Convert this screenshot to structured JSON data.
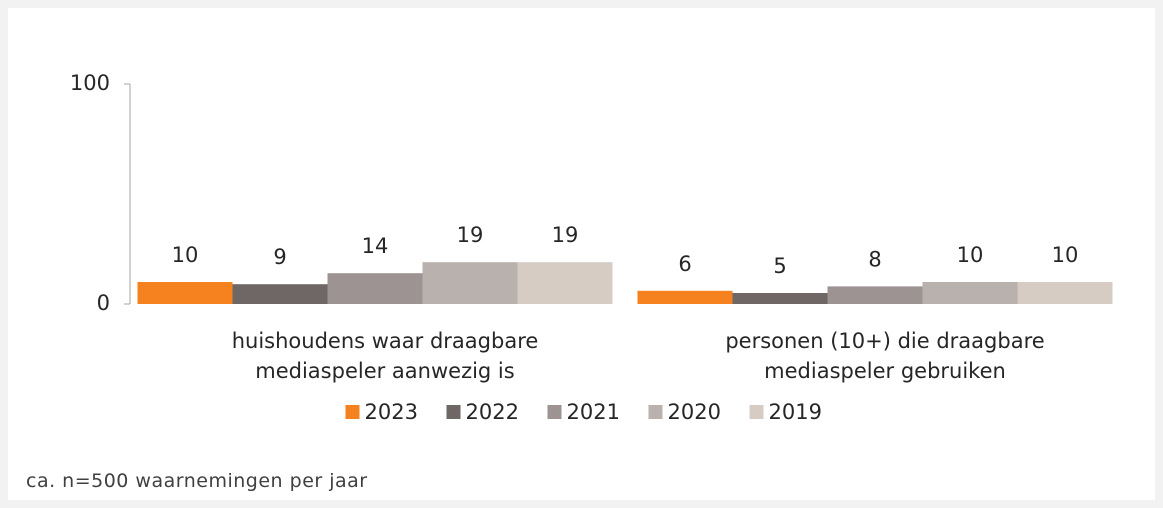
{
  "chart_data": {
    "type": "bar",
    "categories": [
      "huishoudens waar draagbare mediaspeler aanwezig is",
      "personen (10+) die draagbare mediaspeler gebruiken"
    ],
    "series": [
      {
        "name": "2023",
        "color": "#f5821f",
        "values": [
          10,
          6
        ]
      },
      {
        "name": "2022",
        "color": "#6f6666",
        "values": [
          9,
          5
        ]
      },
      {
        "name": "2021",
        "color": "#9d9393",
        "values": [
          14,
          8
        ]
      },
      {
        "name": "2020",
        "color": "#b9b1ae",
        "values": [
          19,
          10
        ]
      },
      {
        "name": "2019",
        "color": "#d6ccc4",
        "values": [
          19,
          10
        ]
      }
    ],
    "ylim": [
      0,
      100
    ],
    "yticks": [
      0,
      100
    ],
    "grid": false,
    "legend": "bottom",
    "note": "ca. n=500 waarnemingen per jaar"
  }
}
